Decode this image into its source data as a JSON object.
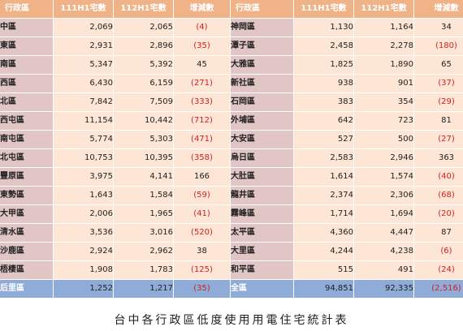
{
  "headers": [
    "行政區",
    "111H1宅數",
    "112H1宅數",
    "增減數",
    "行政區",
    "111H1宅數",
    "112H1宅數",
    "增減數"
  ],
  "left_rows": [
    {
      "district": "中區",
      "h111": "2,069",
      "h112": "2,065",
      "change": "(4)",
      "negative": true
    },
    {
      "district": "東區",
      "h111": "2,931",
      "h112": "2,896",
      "change": "(35)",
      "negative": true
    },
    {
      "district": "南區",
      "h111": "5,347",
      "h112": "5,392",
      "change": "45",
      "negative": false
    },
    {
      "district": "西區",
      "h111": "6,430",
      "h112": "6,159",
      "change": "(271)",
      "negative": true
    },
    {
      "district": "北區",
      "h111": "7,842",
      "h112": "7,509",
      "change": "(333)",
      "negative": true
    },
    {
      "district": "西屯區",
      "h111": "11,154",
      "h112": "10,442",
      "change": "(712)",
      "negative": true
    },
    {
      "district": "南屯區",
      "h111": "5,774",
      "h112": "5,303",
      "change": "(471)",
      "negative": true
    },
    {
      "district": "北屯區",
      "h111": "10,753",
      "h112": "10,395",
      "change": "(358)",
      "negative": true
    },
    {
      "district": "豐原區",
      "h111": "3,975",
      "h112": "4,141",
      "change": "166",
      "negative": false
    },
    {
      "district": "東勢區",
      "h111": "1,643",
      "h112": "1,584",
      "change": "(59)",
      "negative": true
    },
    {
      "district": "大甲區",
      "h111": "2,006",
      "h112": "1,965",
      "change": "(41)",
      "negative": true
    },
    {
      "district": "清水區",
      "h111": "3,536",
      "h112": "3,016",
      "change": "(520)",
      "negative": true
    },
    {
      "district": "沙鹿區",
      "h111": "2,924",
      "h112": "2,962",
      "change": "38",
      "negative": false
    },
    {
      "district": "梧棲區",
      "h111": "1,908",
      "h112": "1,783",
      "change": "(125)",
      "negative": true
    },
    {
      "district": "后里區",
      "h111": "1,252",
      "h112": "1,217",
      "change": "(35)",
      "negative": true
    }
  ],
  "right_rows": [
    {
      "district": "神岡區",
      "h111": "1,130",
      "h112": "1,164",
      "change": "34",
      "negative": false
    },
    {
      "district": "潭子區",
      "h111": "2,458",
      "h112": "2,278",
      "change": "(180)",
      "negative": true
    },
    {
      "district": "大雅區",
      "h111": "1,825",
      "h112": "1,890",
      "change": "65",
      "negative": false
    },
    {
      "district": "新社區",
      "h111": "938",
      "h112": "901",
      "change": "(37)",
      "negative": true
    },
    {
      "district": "石岡區",
      "h111": "383",
      "h112": "354",
      "change": "(29)",
      "negative": true
    },
    {
      "district": "外埔區",
      "h111": "642",
      "h112": "723",
      "change": "81",
      "negative": false
    },
    {
      "district": "大安區",
      "h111": "527",
      "h112": "500",
      "change": "(27)",
      "negative": true
    },
    {
      "district": "烏日區",
      "h111": "2,583",
      "h112": "2,946",
      "change": "363",
      "negative": false
    },
    {
      "district": "大肚區",
      "h111": "1,614",
      "h112": "1,574",
      "change": "(40)",
      "negative": true
    },
    {
      "district": "龍井區",
      "h111": "2,374",
      "h112": "2,306",
      "change": "(68)",
      "negative": true
    },
    {
      "district": "霧峰區",
      "h111": "1,714",
      "h112": "1,694",
      "change": "(20)",
      "negative": true
    },
    {
      "district": "太平區",
      "h111": "4,360",
      "h112": "4,447",
      "change": "87",
      "negative": false
    },
    {
      "district": "大里區",
      "h111": "4,244",
      "h112": "4,238",
      "change": "(6)",
      "negative": true
    },
    {
      "district": "和平區",
      "h111": "515",
      "h112": "491",
      "change": "(24)",
      "negative": true
    },
    {
      "district": "全區",
      "h111": "94,851",
      "h112": "92,335",
      "change": "(2,516)",
      "negative": true,
      "total": true
    }
  ],
  "caption": "台中各行政區低度使用用電住宅統計表",
  "colors": {
    "header_bg": "#f0b388",
    "district_bg": "#e2c6c6",
    "value_bg": "#fde6d5",
    "total_bg": "#8fabd8",
    "negative_text": "#d21f1f"
  }
}
